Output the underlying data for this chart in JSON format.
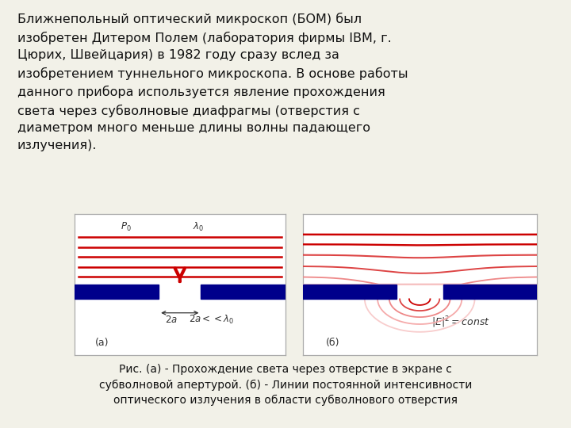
{
  "bg_color": "#f2f1e8",
  "text_color": "#111111",
  "main_text": "Ближнепольный оптический микроскоп (БОМ) был\nизобретен Дитером Полем (лаборатория фирмы IBM, г.\nЦюрих, Швейцария) в 1982 году сразу вслед за\nизобретением туннельного микроскопа. В основе работы\nданного прибора используется явление прохождения\nсвета через субволновые диафрагмы (отверстия с\nдиаметром много меньше длины волны падающего\nизлучения).",
  "caption_line1": "Рис. (а) - Прохождение света через отверстие в экране с",
  "caption_line2": "субволновой апертурой. (б) - Линии постоянной интенсивности",
  "caption_line3": "оптического излучения в области субволнового отверстия",
  "panel_bg": "#ffffff",
  "panel_border": "#aaaaaa",
  "barrier_color": "#00008B",
  "red_dark": "#cc0000",
  "red_mid": "#dd4444",
  "red_light": "#ee8888",
  "red_pale": "#f5aaaa",
  "red_xpale": "#f8cccc",
  "arrow_color": "#cc0000",
  "label_color": "#333333",
  "font_main": 11.5,
  "font_caption": 10.0,
  "font_label": 8.5
}
